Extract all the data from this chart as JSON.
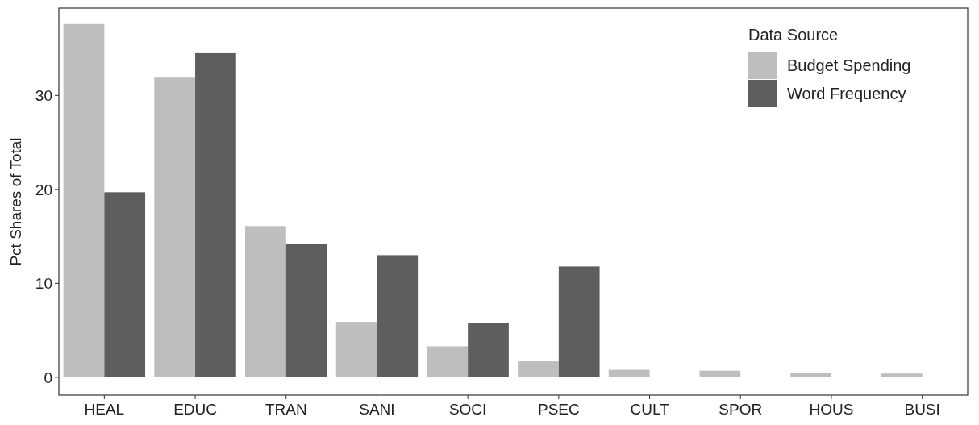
{
  "chart_data": {
    "type": "bar",
    "ylabel": "Pct Shares of Total",
    "legend_title": "Data Source",
    "legend": "top right",
    "grid": false,
    "categories": [
      "HEAL",
      "EDUC",
      "TRAN",
      "SANI",
      "SOCI",
      "PSEC",
      "CULT",
      "SPOR",
      "HOUS",
      "BUSI"
    ],
    "series": [
      {
        "name": "Budget Spending",
        "color": "#bebebe",
        "values": [
          37.6,
          31.9,
          16.1,
          5.9,
          3.3,
          1.7,
          0.8,
          0.7,
          0.5,
          0.4
        ]
      },
      {
        "name": "Word Frequency",
        "color": "#5e5e5e",
        "values": [
          19.7,
          34.5,
          14.2,
          13.0,
          5.8,
          11.8,
          null,
          null,
          null,
          null
        ]
      }
    ],
    "ylim": [
      -1.9,
      39.3
    ],
    "yticks": [
      0,
      10,
      20,
      30
    ]
  }
}
